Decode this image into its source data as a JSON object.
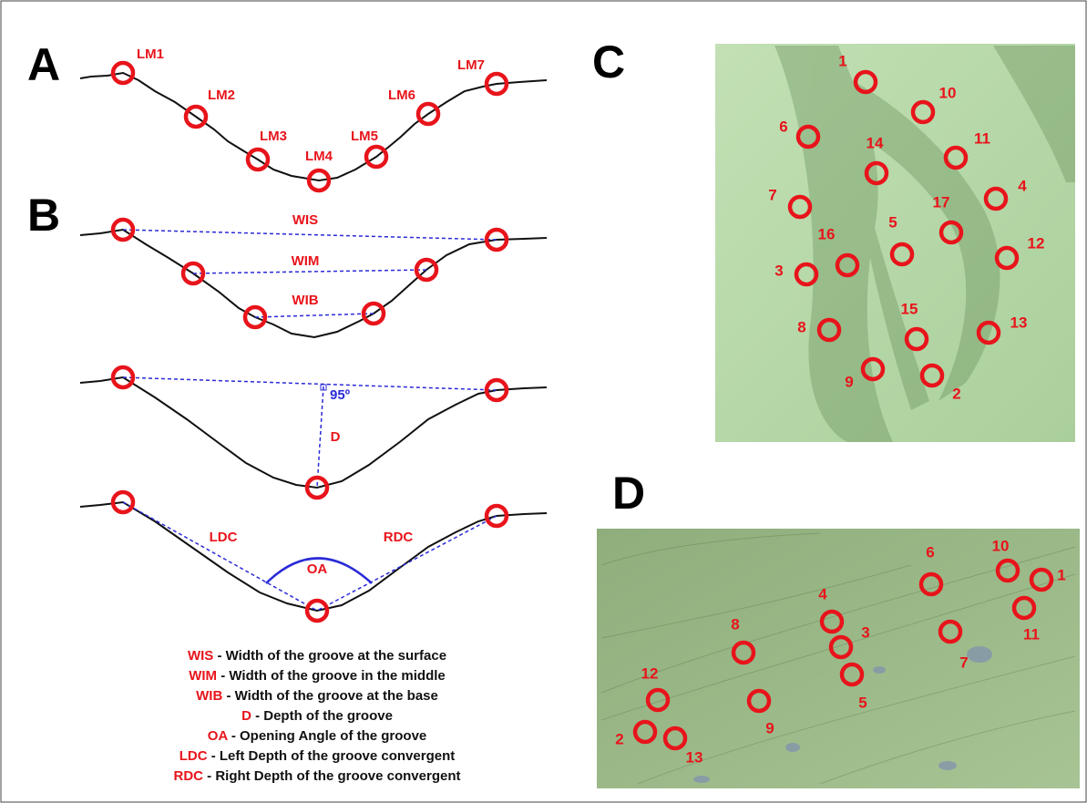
{
  "panel_labels": [
    "A",
    "B",
    "C",
    "D"
  ],
  "panel_a": {
    "landmarks": [
      "LM1",
      "LM2",
      "LM3",
      "LM4",
      "LM5",
      "LM6",
      "LM7"
    ]
  },
  "panel_b": {
    "widths": [
      "WIS",
      "WIM",
      "WIB"
    ],
    "angle": "95º",
    "depth": "D",
    "opening": "OA",
    "left": "LDC",
    "right": "RDC"
  },
  "legend": [
    {
      "abbr": "WIS",
      "desc": " - Width of the groove at the surface"
    },
    {
      "abbr": "WIM",
      "desc": " - Width of the groove in the middle"
    },
    {
      "abbr": "WIB",
      "desc": " - Width of the groove at the base"
    },
    {
      "abbr": "D",
      "desc": " - Depth of the groove"
    },
    {
      "abbr": "OA",
      "desc": " - Opening Angle of the groove"
    },
    {
      "abbr": "LDC",
      "desc": " - Left Depth of the groove convergent"
    },
    {
      "abbr": "RDC",
      "desc": " - Right Depth of the groove convergent"
    }
  ],
  "panel_c": {
    "points": [
      "1",
      "10",
      "6",
      "14",
      "11",
      "7",
      "4",
      "17",
      "5",
      "16",
      "12",
      "3",
      "15",
      "13",
      "8",
      "9",
      "2"
    ]
  },
  "panel_d": {
    "points": [
      "6",
      "10",
      "1",
      "11",
      "4",
      "3",
      "8",
      "7",
      "5",
      "12",
      "9",
      "2",
      "13"
    ]
  }
}
